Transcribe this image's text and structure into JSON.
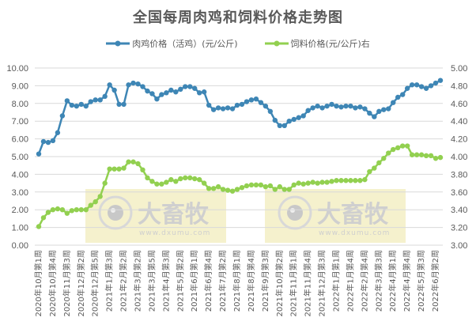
{
  "title": "全国每周肉鸡和饲料价格走势图",
  "legend": [
    {
      "label": "肉鸡价格（活鸡）(元/公斤)",
      "color": "#3E86B5"
    },
    {
      "label": "饲料价格(元/公斤)右",
      "color": "#92D050"
    }
  ],
  "watermark": {
    "brand": "大畜牧",
    "url": "www.dxumu.com",
    "bg": "#F3EEC4"
  },
  "chart_data": {
    "type": "line",
    "title": "全国每周肉鸡和饲料价格走势图",
    "xlabel": "",
    "ylabel": "",
    "y_left_ticks": [
      "0.00",
      "1.00",
      "2.00",
      "3.00",
      "4.00",
      "5.00",
      "6.00",
      "7.00",
      "8.00",
      "9.00",
      "10.00"
    ],
    "y_right_ticks": [
      "3.00",
      "3.20",
      "3.40",
      "3.60",
      "3.80",
      "4.00",
      "4.20",
      "4.40",
      "4.60",
      "4.80",
      "5.00"
    ],
    "ylim_left": [
      0,
      10
    ],
    "ylim_right": [
      3,
      5
    ],
    "grid": true,
    "legend_position": "top",
    "x_tick_labels": [
      "2020年10月第1周",
      "2020年10月第4周",
      "2020年11月第3周",
      "2020年12月第2周",
      "2020年12月第5周",
      "2021年1月第3周",
      "2021年2月第2周",
      "2021年3月第2周",
      "2021年3月第5周",
      "2021年4月第3周",
      "2021年5月第2周",
      "2021年6月第1周",
      "2021年6月第4周",
      "2021年7月第2周",
      "2021年8月第1周",
      "2021年8月第4周",
      "2021年9月第3周",
      "2021年10月第2周",
      "2021年11月第1周",
      "2021年11月第4周",
      "2021年12月第3周",
      "2022年1月第1周",
      "2022年1月第4周",
      "2022年2月第4周",
      "2022年3月第3周",
      "2022年4月第1周",
      "2022年4月第4周",
      "2022年5月第3周",
      "2022年6月第2周"
    ],
    "series": [
      {
        "name": "肉鸡价格（活鸡）(元/公斤)",
        "axis": "left",
        "color": "#3E86B5",
        "values": [
          5.15,
          5.85,
          5.8,
          5.9,
          6.35,
          7.3,
          8.15,
          7.9,
          7.85,
          7.95,
          7.85,
          8.1,
          8.2,
          8.2,
          8.4,
          9.05,
          8.75,
          7.95,
          7.95,
          9.05,
          9.15,
          9.1,
          8.95,
          8.7,
          8.55,
          8.25,
          8.5,
          8.6,
          8.75,
          8.65,
          8.8,
          8.95,
          8.95,
          8.85,
          8.6,
          8.65,
          7.9,
          7.65,
          7.75,
          7.7,
          7.75,
          7.7,
          7.9,
          7.95,
          8.1,
          8.2,
          8.25,
          8.05,
          7.85,
          7.55,
          7.05,
          6.75,
          6.75,
          7.0,
          7.1,
          7.2,
          7.3,
          7.6,
          7.75,
          7.85,
          7.75,
          7.85,
          7.95,
          7.85,
          7.8,
          7.85,
          7.85,
          7.75,
          7.8,
          7.7,
          7.45,
          7.25,
          7.55,
          7.65,
          7.7,
          8.05,
          8.35,
          8.5,
          8.85,
          9.05,
          9.05,
          8.95,
          8.85,
          9.0,
          9.15,
          9.3
        ]
      },
      {
        "name": "饲料价格(元/公斤)右",
        "axis": "right",
        "color": "#92D050",
        "values": [
          3.21,
          3.31,
          3.37,
          3.4,
          3.41,
          3.4,
          3.36,
          3.39,
          3.4,
          3.4,
          3.4,
          3.45,
          3.49,
          3.55,
          3.7,
          3.86,
          3.86,
          3.86,
          3.87,
          3.94,
          3.94,
          3.92,
          3.85,
          3.76,
          3.72,
          3.69,
          3.69,
          3.71,
          3.74,
          3.72,
          3.75,
          3.76,
          3.76,
          3.75,
          3.74,
          3.7,
          3.64,
          3.64,
          3.66,
          3.63,
          3.62,
          3.61,
          3.63,
          3.65,
          3.67,
          3.68,
          3.68,
          3.68,
          3.66,
          3.67,
          3.63,
          3.66,
          3.63,
          3.63,
          3.68,
          3.7,
          3.69,
          3.7,
          3.71,
          3.7,
          3.71,
          3.71,
          3.72,
          3.73,
          3.73,
          3.73,
          3.73,
          3.73,
          3.73,
          3.74,
          3.83,
          3.87,
          3.93,
          3.98,
          4.04,
          4.08,
          4.1,
          4.12,
          4.12,
          4.02,
          4.02,
          4.02,
          4.01,
          4.01,
          3.98,
          3.99
        ]
      }
    ]
  }
}
